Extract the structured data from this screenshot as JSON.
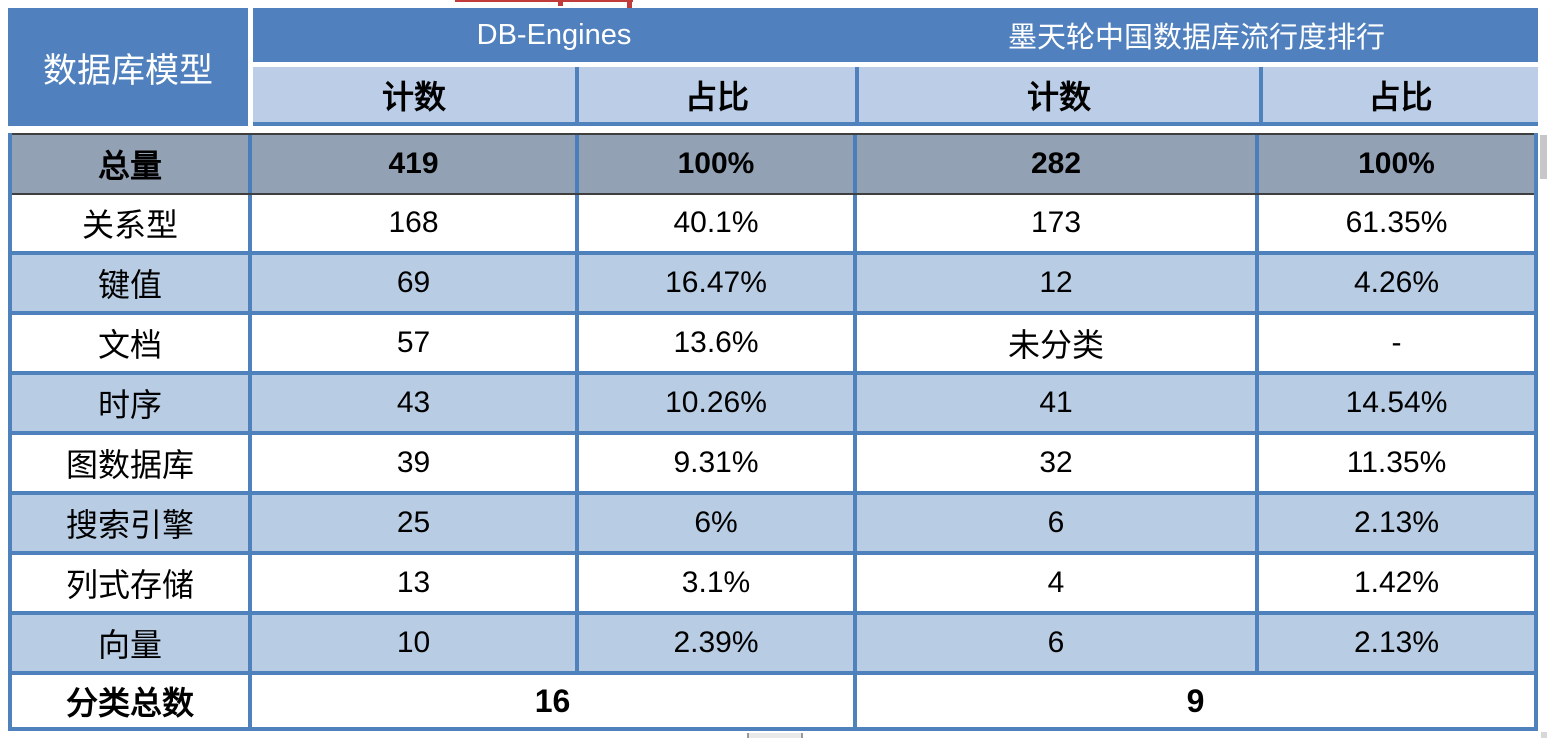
{
  "table": {
    "corner_header": "数据库模型",
    "groups": [
      {
        "title": "DB-Engines",
        "subcols": [
          "计数",
          "占比"
        ]
      },
      {
        "title": "墨天轮中国数据库流行度排行",
        "subcols": [
          "计数",
          "占比"
        ]
      }
    ],
    "rows": [
      {
        "label": "总量",
        "values": [
          "419",
          "100%",
          "282",
          "100%"
        ]
      },
      {
        "label": "关系型",
        "values": [
          "168",
          "40.1%",
          "173",
          "61.35%"
        ]
      },
      {
        "label": "键值",
        "values": [
          "69",
          "16.47%",
          "12",
          "4.26%"
        ]
      },
      {
        "label": "文档",
        "values": [
          "57",
          "13.6%",
          "未分类",
          "-"
        ]
      },
      {
        "label": "时序",
        "values": [
          "43",
          "10.26%",
          "41",
          "14.54%"
        ]
      },
      {
        "label": "图数据库",
        "values": [
          "39",
          "9.31%",
          "32",
          "11.35%"
        ]
      },
      {
        "label": "搜索引擎",
        "values": [
          "25",
          "6%",
          "6",
          "2.13%"
        ]
      },
      {
        "label": "列式存储",
        "values": [
          "13",
          "3.1%",
          "4",
          "1.42%"
        ]
      },
      {
        "label": "向量",
        "values": [
          "10",
          "2.39%",
          "6",
          "2.13%"
        ]
      }
    ],
    "footer": {
      "label": "分类总数",
      "db_engines_total": "16",
      "motianlun_total": "9"
    }
  },
  "colors": {
    "header_blue": "#5081BE",
    "light_blue": "#B8CCE4",
    "subheader_blue": "#BCCEE7",
    "total_row_gray": "#93A1B5",
    "border_blue": "#4F81BD",
    "total_row_dark_line": "#3F3F3F",
    "artifact_red": "#C23B3B"
  },
  "chart_data": {
    "type": "table",
    "columns": [
      "数据库模型",
      "DB-Engines 计数",
      "DB-Engines 占比",
      "墨天轮中国数据库流行度排行 计数",
      "墨天轮中国数据库流行度排行 占比"
    ],
    "rows": [
      [
        "总量",
        "419",
        "100%",
        "282",
        "100%"
      ],
      [
        "关系型",
        "168",
        "40.1%",
        "173",
        "61.35%"
      ],
      [
        "键值",
        "69",
        "16.47%",
        "12",
        "4.26%"
      ],
      [
        "文档",
        "57",
        "13.6%",
        "未分类",
        "-"
      ],
      [
        "时序",
        "43",
        "10.26%",
        "41",
        "14.54%"
      ],
      [
        "图数据库",
        "39",
        "9.31%",
        "32",
        "11.35%"
      ],
      [
        "搜索引擎",
        "25",
        "6%",
        "6",
        "2.13%"
      ],
      [
        "列式存储",
        "13",
        "3.1%",
        "4",
        "1.42%"
      ],
      [
        "向量",
        "10",
        "2.39%",
        "6",
        "2.13%"
      ],
      [
        "分类总数",
        "16",
        "",
        "9",
        ""
      ]
    ]
  }
}
